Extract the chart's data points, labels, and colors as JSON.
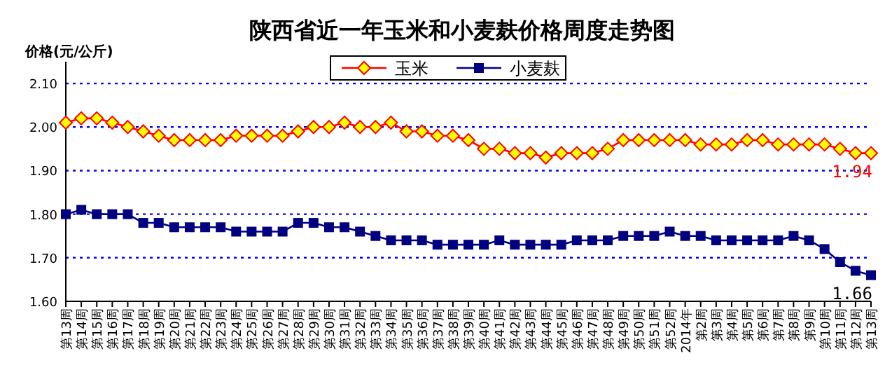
{
  "chart_data": {
    "type": "line",
    "title": "陕西省近一年玉米和小麦麸价格周度走势图",
    "ylabel": "价格(元/公斤)",
    "categories": [
      "第13周",
      "第14周",
      "第15周",
      "第16周",
      "第17周",
      "第18周",
      "第19周",
      "第20周",
      "第21周",
      "第22周",
      "第23周",
      "第24周",
      "第25周",
      "第26周",
      "第27周",
      "第28周",
      "第29周",
      "第30周",
      "第31周",
      "第32周",
      "第33周",
      "第34周",
      "第35周",
      "第36周",
      "第37周",
      "第38周",
      "第39周",
      "第40周",
      "第41周",
      "第42周",
      "第43周",
      "第44周",
      "第45周",
      "第46周",
      "第47周",
      "第48周",
      "第49周",
      "第50周",
      "第51周",
      "第52周",
      "2014年",
      "第2周",
      "第3周",
      "第4周",
      "第5周",
      "第6周",
      "第7周",
      "第8周",
      "第9周",
      "第10周",
      "第11周",
      "第12周",
      "第13周"
    ],
    "series": [
      {
        "name": "玉米",
        "color": "#ff0000",
        "marker": "diamond",
        "values": [
          2.01,
          2.02,
          2.02,
          2.01,
          2.0,
          1.99,
          1.98,
          1.97,
          1.97,
          1.97,
          1.97,
          1.98,
          1.98,
          1.98,
          1.98,
          1.99,
          2.0,
          2.0,
          2.01,
          2.0,
          2.0,
          2.01,
          1.99,
          1.99,
          1.98,
          1.98,
          1.97,
          1.95,
          1.95,
          1.94,
          1.94,
          1.93,
          1.94,
          1.94,
          1.94,
          1.95,
          1.97,
          1.97,
          1.97,
          1.97,
          1.97,
          1.96,
          1.96,
          1.96,
          1.97,
          1.97,
          1.96,
          1.96,
          1.96,
          1.96,
          1.95,
          1.94,
          1.94
        ]
      },
      {
        "name": "小麦麸",
        "color": "#000080",
        "marker": "square",
        "values": [
          1.8,
          1.81,
          1.8,
          1.8,
          1.8,
          1.78,
          1.78,
          1.77,
          1.77,
          1.77,
          1.77,
          1.76,
          1.76,
          1.76,
          1.76,
          1.78,
          1.78,
          1.77,
          1.77,
          1.76,
          1.75,
          1.74,
          1.74,
          1.74,
          1.73,
          1.73,
          1.73,
          1.73,
          1.74,
          1.73,
          1.73,
          1.73,
          1.73,
          1.74,
          1.74,
          1.74,
          1.75,
          1.75,
          1.75,
          1.76,
          1.75,
          1.75,
          1.74,
          1.74,
          1.74,
          1.74,
          1.74,
          1.75,
          1.74,
          1.72,
          1.69,
          1.67,
          1.66
        ]
      }
    ],
    "ylim": [
      1.6,
      2.15
    ],
    "yticks": [
      {
        "value": 1.6,
        "label": "1.60"
      },
      {
        "value": 1.7,
        "label": "1.70"
      },
      {
        "value": 1.8,
        "label": "1.80"
      },
      {
        "value": 1.9,
        "label": "1.90"
      },
      {
        "value": 2.0,
        "label": "2.00"
      },
      {
        "value": 2.1,
        "label": "2.10"
      }
    ],
    "grid": "y",
    "legend": "top",
    "line_style": "solid",
    "annotations": [
      "1.94",
      "1.66"
    ]
  }
}
